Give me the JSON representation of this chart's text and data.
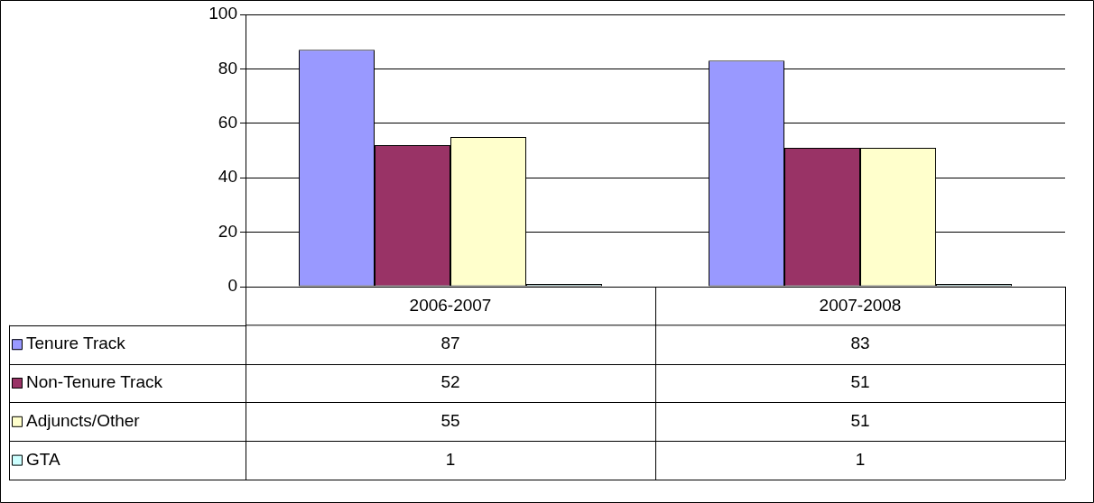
{
  "chart_data": {
    "type": "bar",
    "categories": [
      "2006-2007",
      "2007-2008"
    ],
    "series": [
      {
        "name": "Tenure Track",
        "color": "#9999ff",
        "values": [
          87,
          83
        ]
      },
      {
        "name": "Non-Tenure Track",
        "color": "#993366",
        "values": [
          52,
          51
        ]
      },
      {
        "name": "Adjuncts/Other",
        "color": "#ffffcc",
        "values": [
          55,
          51
        ]
      },
      {
        "name": "GTA",
        "color": "#ccffff",
        "values": [
          1,
          1
        ]
      }
    ],
    "ylim": [
      0,
      100
    ],
    "yticks": [
      0,
      20,
      40,
      60,
      80,
      100
    ],
    "grid": "y",
    "legend": "bottom left",
    "data_labels": true
  }
}
